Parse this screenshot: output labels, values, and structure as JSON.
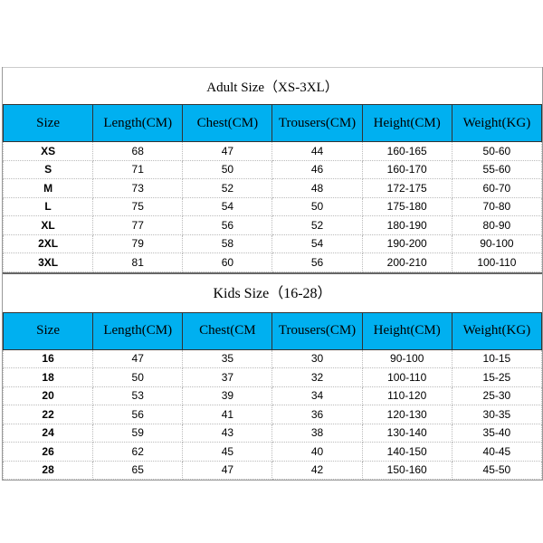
{
  "headers": [
    "Size",
    "Length(CM)",
    "Chest(CM)",
    "Trousers(CM)",
    "Height(CM)",
    "Weight(KG)"
  ],
  "kids_headers": [
    "Size",
    "Length(CM)",
    "Chest(CM",
    "Trousers(CM)",
    "Height(CM)",
    "Weight(KG)"
  ],
  "adult": {
    "title": "Adult Size（XS-3XL）",
    "rows": [
      [
        "XS",
        "68",
        "47",
        "44",
        "160-165",
        "50-60"
      ],
      [
        "S",
        "71",
        "50",
        "46",
        "160-170",
        "55-60"
      ],
      [
        "M",
        "73",
        "52",
        "48",
        "172-175",
        "60-70"
      ],
      [
        "L",
        "75",
        "54",
        "50",
        "175-180",
        "70-80"
      ],
      [
        "XL",
        "77",
        "56",
        "52",
        "180-190",
        "80-90"
      ],
      [
        "2XL",
        "79",
        "58",
        "54",
        "190-200",
        "90-100"
      ],
      [
        "3XL",
        "81",
        "60",
        "56",
        "200-210",
        "100-110"
      ]
    ]
  },
  "kids": {
    "title": "Kids Size（16-28）",
    "rows": [
      [
        "16",
        "47",
        "35",
        "30",
        "90-100",
        "10-15"
      ],
      [
        "18",
        "50",
        "37",
        "32",
        "100-110",
        "15-25"
      ],
      [
        "20",
        "53",
        "39",
        "34",
        "110-120",
        "25-30"
      ],
      [
        "22",
        "56",
        "41",
        "36",
        "120-130",
        "30-35"
      ],
      [
        "24",
        "59",
        "43",
        "38",
        "130-140",
        "35-40"
      ],
      [
        "26",
        "62",
        "45",
        "40",
        "140-150",
        "40-45"
      ],
      [
        "28",
        "65",
        "47",
        "42",
        "150-160",
        "45-50"
      ]
    ]
  },
  "colors": {
    "header_bg": "#00b0f0"
  }
}
